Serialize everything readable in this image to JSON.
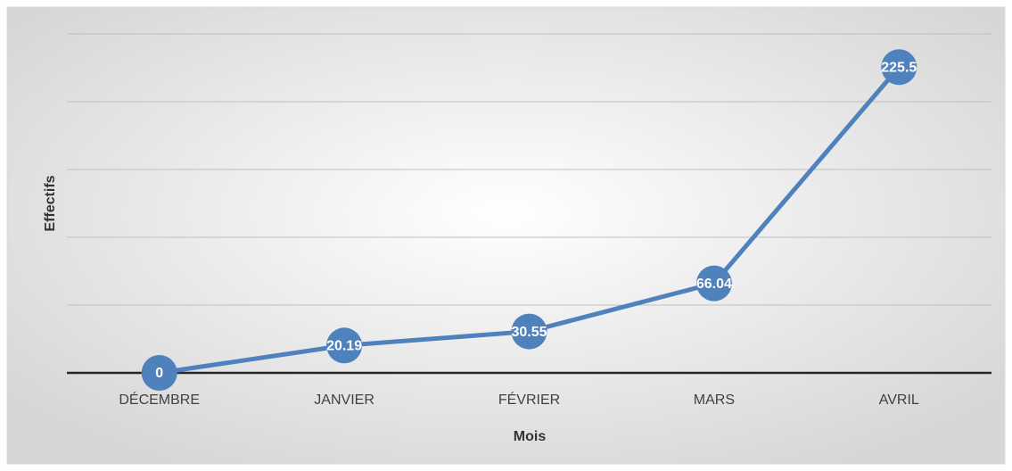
{
  "chart_data": {
    "type": "line",
    "x_label": "Mois",
    "y_label": "Effectifs",
    "categories": [
      "DÉCEMBRE",
      "JANVIER",
      "FÉVRIER",
      "MARS",
      "AVRIL"
    ],
    "series": [
      {
        "name": "Effectifs",
        "color": "#4f81bd",
        "values": [
          0,
          20.19,
          30.55,
          66.04,
          225.5
        ]
      }
    ],
    "ylim": [
      0,
      250
    ],
    "yticks": [
      0,
      50,
      100,
      150,
      200,
      250
    ],
    "grid": true
  }
}
